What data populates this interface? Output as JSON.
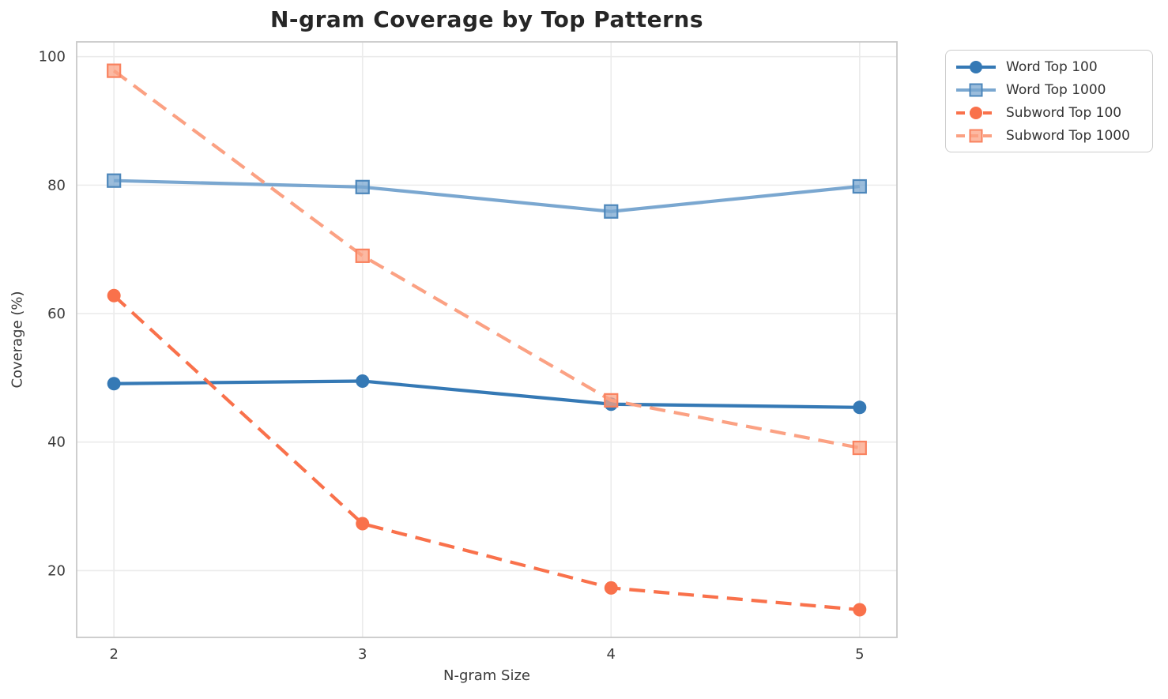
{
  "chart_data": {
    "type": "line",
    "title": "N-gram Coverage by Top Patterns",
    "xlabel": "N-gram Size",
    "ylabel": "Coverage (%)",
    "x": [
      2,
      3,
      4,
      5
    ],
    "xticks": [
      "2",
      "3",
      "4",
      "5"
    ],
    "yticks": [
      "20",
      "40",
      "60",
      "80",
      "100"
    ],
    "ytick_values": [
      20,
      40,
      60,
      80,
      100
    ],
    "xlim": [
      1.85,
      5.15
    ],
    "ylim": [
      9.6,
      102.3
    ],
    "grid": true,
    "legend_position": "outside-upper-right",
    "series": [
      {
        "name": "Word Top 100",
        "values": [
          49.1,
          49.5,
          45.9,
          45.4
        ],
        "color": "#3579b5",
        "marker_edge_color": "#3579b5",
        "marker": "circle",
        "line_style": "solid"
      },
      {
        "name": "Word Top 1000",
        "values": [
          80.7,
          79.7,
          75.9,
          79.8
        ],
        "color": "#7aa7d0",
        "marker_edge_color": "#4d87bb",
        "marker": "square",
        "line_style": "solid"
      },
      {
        "name": "Subword Top 100",
        "values": [
          62.8,
          27.3,
          17.3,
          13.9
        ],
        "color": "#f9714b",
        "marker_edge_color": "#f9714b",
        "marker": "circle",
        "line_style": "dashed"
      },
      {
        "name": "Subword Top 1000",
        "values": [
          97.8,
          69.0,
          46.5,
          39.1
        ],
        "color": "#fba183",
        "marker_edge_color": "#f9825f",
        "marker": "square",
        "line_style": "dashed"
      }
    ],
    "colors": {
      "grid": "#ebebeb",
      "spine": "#c9c9c9",
      "title_text": "#262626",
      "label_text": "#3a3a3a",
      "legend_border": "#cccccc"
    }
  }
}
